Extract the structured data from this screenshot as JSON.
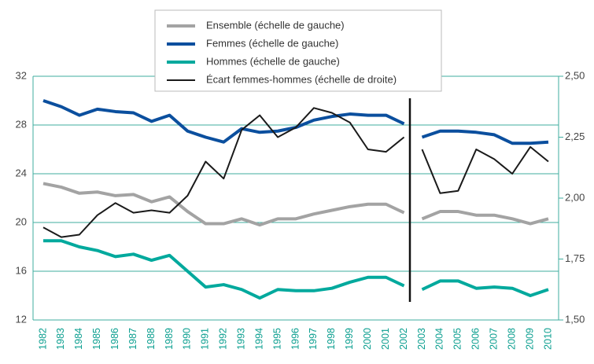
{
  "chart_data": {
    "type": "line",
    "categories": [
      "1982",
      "1983",
      "1984",
      "1985",
      "1986",
      "1987",
      "1988",
      "1989",
      "1990",
      "1991",
      "1992",
      "1993",
      "1994",
      "1995",
      "1996",
      "1997",
      "1998",
      "1999",
      "2000",
      "2001",
      "2002",
      "2003",
      "2004",
      "2005",
      "2006",
      "2007",
      "2008",
      "2009",
      "2010"
    ],
    "series": [
      {
        "name": "Ensemble (échelle de gauche)",
        "color": "#a3a3a3",
        "values": [
          23.2,
          22.9,
          22.4,
          22.5,
          22.2,
          22.3,
          21.7,
          22.1,
          20.9,
          19.9,
          19.9,
          20.3,
          19.8,
          20.3,
          20.3,
          20.7,
          21.0,
          21.3,
          21.5,
          21.5,
          20.8,
          20.3,
          20.9,
          20.9,
          20.6,
          20.6,
          20.3,
          19.9,
          20.3
        ]
      },
      {
        "name": "Femmes (échelle de gauche)",
        "color": "#0b4f9e",
        "values": [
          30.0,
          29.5,
          28.8,
          29.3,
          29.1,
          29.0,
          28.3,
          28.8,
          27.5,
          27.0,
          26.6,
          27.7,
          27.4,
          27.5,
          27.8,
          28.4,
          28.7,
          28.9,
          28.8,
          28.8,
          28.1,
          27.0,
          27.5,
          27.5,
          27.4,
          27.2,
          26.5,
          26.5,
          26.6
        ]
      },
      {
        "name": "Hommes (échelle de gauche)",
        "color": "#00a99d",
        "values": [
          18.5,
          18.5,
          18.0,
          17.7,
          17.2,
          17.4,
          16.9,
          17.3,
          16.0,
          14.7,
          14.9,
          14.5,
          13.8,
          14.5,
          14.4,
          14.4,
          14.6,
          15.1,
          15.5,
          15.5,
          14.8,
          14.5,
          15.2,
          15.2,
          14.6,
          14.7,
          14.6,
          14.0,
          14.5
        ]
      },
      {
        "name": "Écart femmes-hommes (échelle de droite)",
        "color": "#1a1a1a",
        "axis": "y2",
        "values": [
          1.88,
          1.84,
          1.85,
          1.93,
          1.98,
          1.94,
          1.95,
          1.94,
          2.01,
          2.15,
          2.08,
          2.28,
          2.34,
          2.25,
          2.29,
          2.37,
          2.35,
          2.31,
          2.2,
          2.19,
          2.25,
          2.2,
          2.02,
          2.03,
          2.2,
          2.16,
          2.1,
          2.21,
          2.15
        ]
      }
    ],
    "ylim": [
      12,
      32
    ],
    "yticks": [
      12,
      16,
      20,
      24,
      28,
      32
    ],
    "y2lim": [
      1.5,
      2.5
    ],
    "y2ticks": [
      {
        "value": 1.5,
        "label": "1,50"
      },
      {
        "value": 1.75,
        "label": "1,75"
      },
      {
        "value": 2.0,
        "label": "2,00"
      },
      {
        "value": 2.25,
        "label": "2,25"
      },
      {
        "value": 2.5,
        "label": "2,50"
      }
    ],
    "grid": true
  }
}
